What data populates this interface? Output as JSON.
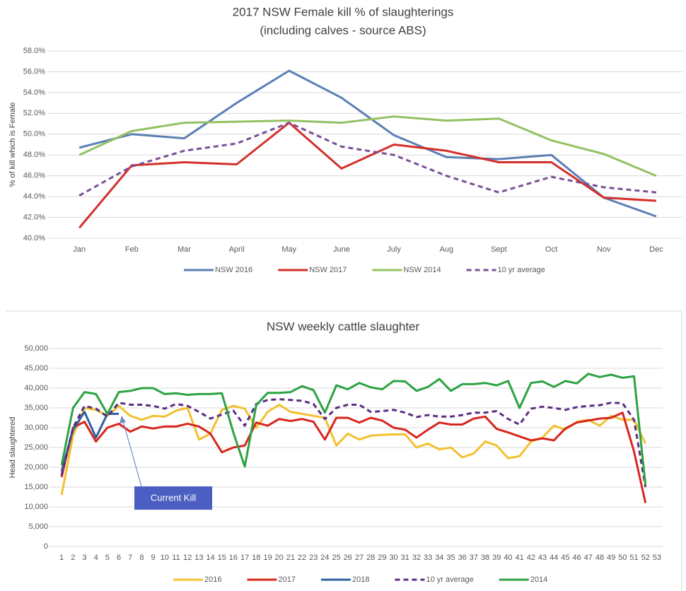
{
  "chart_data": [
    {
      "type": "line",
      "title": "2017 NSW Female kill % of slaughterings",
      "subtitle": "(including calves - source ABS)",
      "y_label": "% of kill which is Female",
      "categories": [
        "Jan",
        "Feb",
        "Mar",
        "April",
        "May",
        "June",
        "July",
        "Aug",
        "Sept",
        "Oct",
        "Nov",
        "Dec"
      ],
      "series": [
        {
          "name": "NSW 2016",
          "color": "#5b7fb5",
          "values": [
            48.7,
            50.0,
            49.6,
            53.0,
            56.1,
            53.5,
            49.9,
            47.8,
            47.6,
            48.0,
            43.9,
            42.1
          ]
        },
        {
          "name": "NSW 2017",
          "color": "#d3302a",
          "values": [
            41.0,
            47.0,
            47.3,
            47.1,
            51.1,
            46.7,
            49.0,
            48.4,
            47.3,
            47.3,
            43.9,
            43.6
          ]
        },
        {
          "name": "NSW 2014",
          "color": "#93c162",
          "values": [
            48.0,
            50.3,
            51.1,
            51.2,
            51.3,
            51.1,
            51.7,
            51.3,
            51.5,
            49.4,
            48.1,
            46.0
          ]
        },
        {
          "name": "10 yr average",
          "color": "#7a4f9a",
          "dash": true,
          "values": [
            44.1,
            46.9,
            48.4,
            49.1,
            51.1,
            48.8,
            48.0,
            46.0,
            44.4,
            45.9,
            44.9,
            44.4
          ]
        }
      ],
      "ylim": [
        40,
        58
      ],
      "yticks": [
        {
          "value": 40,
          "label": "40.0%"
        },
        {
          "value": 42,
          "label": "42.0%"
        },
        {
          "value": 44,
          "label": "44.0%"
        },
        {
          "value": 46,
          "label": "46.0%"
        },
        {
          "value": 48,
          "label": "48.0%"
        },
        {
          "value": 50,
          "label": "50.0%"
        },
        {
          "value": 52,
          "label": "52.0%"
        },
        {
          "value": 54,
          "label": "54.0%"
        },
        {
          "value": 56,
          "label": "56.0%"
        },
        {
          "value": 58,
          "label": "58.0%"
        }
      ],
      "grid": true,
      "legend": "bottom"
    },
    {
      "type": "line",
      "title": "NSW weekly cattle slaughter",
      "y_label": "Head slaughtered",
      "annotation": "Current Kill",
      "categories": [
        "1",
        "2",
        "3",
        "4",
        "5",
        "6",
        "7",
        "8",
        "9",
        "10",
        "11",
        "12",
        "13",
        "14",
        "15",
        "16",
        "17",
        "18",
        "19",
        "20",
        "21",
        "22",
        "23",
        "24",
        "25",
        "26",
        "27",
        "28",
        "29",
        "30",
        "31",
        "32",
        "33",
        "34",
        "35",
        "36",
        "37",
        "38",
        "39",
        "40",
        "41",
        "42",
        "43",
        "44",
        "45",
        "46",
        "47",
        "48",
        "49",
        "50",
        "51",
        "52",
        "53"
      ],
      "series": [
        {
          "name": "2016",
          "color": "#f2c12e",
          "values": [
            13000,
            28000,
            35000,
            34500,
            33000,
            35500,
            33000,
            32000,
            33000,
            32800,
            34300,
            35000,
            27000,
            28500,
            34500,
            35500,
            34800,
            30000,
            34000,
            35800,
            34000,
            33500,
            33000,
            32500,
            25500,
            28500,
            27000,
            28000,
            28200,
            28300,
            28300,
            25000,
            26000,
            24500,
            25000,
            22500,
            23500,
            26500,
            25500,
            22300,
            22800,
            26500,
            27500,
            30500,
            29500,
            31500,
            32000,
            30500,
            33000,
            32000,
            32000,
            26000,
            null
          ]
        },
        {
          "name": "2017",
          "color": "#d7261e",
          "values": [
            17500,
            30000,
            31500,
            26500,
            30000,
            31000,
            29000,
            30300,
            29800,
            30300,
            30300,
            31000,
            30300,
            28500,
            23800,
            25000,
            25500,
            31300,
            30500,
            32200,
            31700,
            32200,
            31500,
            27000,
            32500,
            32500,
            31300,
            32500,
            31800,
            30000,
            29500,
            27500,
            29500,
            31300,
            30800,
            30800,
            32300,
            32800,
            29700,
            28800,
            27800,
            26800,
            27300,
            26800,
            29800,
            31300,
            31800,
            32300,
            32500,
            33800,
            24000,
            11000,
            null
          ]
        },
        {
          "name": "2018",
          "color": "#2e5fa3",
          "values": [
            19000,
            29500,
            34000,
            27500,
            33500,
            33500,
            null,
            null,
            null,
            null,
            null,
            null,
            null,
            null,
            null,
            null,
            null,
            null,
            null,
            null,
            null,
            null,
            null,
            null,
            null,
            null,
            null,
            null,
            null,
            null,
            null,
            null,
            null,
            null,
            null,
            null,
            null,
            null,
            null,
            null,
            null,
            null,
            null,
            null,
            null,
            null,
            null,
            null,
            null,
            null,
            null,
            null,
            null
          ]
        },
        {
          "name": "10 yr average",
          "color": "#5a2d82",
          "dash": true,
          "values": [
            18000,
            30000,
            35500,
            34800,
            32800,
            36300,
            35800,
            35800,
            35500,
            34800,
            36000,
            35500,
            34000,
            32300,
            33300,
            34300,
            30500,
            36000,
            37000,
            37200,
            37000,
            36800,
            36000,
            32200,
            35000,
            35800,
            35800,
            34000,
            34200,
            34500,
            33800,
            32700,
            33200,
            32800,
            32800,
            33200,
            33800,
            33800,
            34200,
            32200,
            30800,
            34800,
            35300,
            35000,
            34500,
            35200,
            35500,
            35700,
            36300,
            36200,
            32000,
            15000,
            null
          ]
        },
        {
          "name": "2014",
          "color": "#2ca243",
          "values": [
            20500,
            35000,
            39000,
            38500,
            33500,
            39000,
            39300,
            40000,
            40000,
            38500,
            38700,
            38300,
            38500,
            38500,
            38700,
            28800,
            20200,
            35700,
            38800,
            38800,
            39000,
            40500,
            39500,
            33800,
            40700,
            39700,
            41300,
            40200,
            39700,
            41800,
            41700,
            39300,
            40300,
            42300,
            39300,
            41000,
            41000,
            41300,
            40700,
            41800,
            35000,
            41300,
            41700,
            40300,
            41800,
            41200,
            43600,
            42800,
            43400,
            42600,
            43000,
            15500,
            null
          ]
        }
      ],
      "ylim": [
        0,
        50000
      ],
      "yticks": [
        0,
        {
          "value": 5000,
          "label": "5,000"
        },
        {
          "value": 10000,
          "label": "10,000"
        },
        {
          "value": 15000,
          "label": "15,000"
        },
        {
          "value": 20000,
          "label": "20,000"
        },
        {
          "value": 25000,
          "label": "25,000"
        },
        {
          "value": 30000,
          "label": "30,000"
        },
        {
          "value": 35000,
          "label": "35,000"
        },
        {
          "value": 40000,
          "label": "40,000"
        },
        {
          "value": 45000,
          "label": "45,000"
        },
        {
          "value": 50000,
          "label": "50,000"
        }
      ],
      "grid": true,
      "legend": "bottom"
    }
  ]
}
